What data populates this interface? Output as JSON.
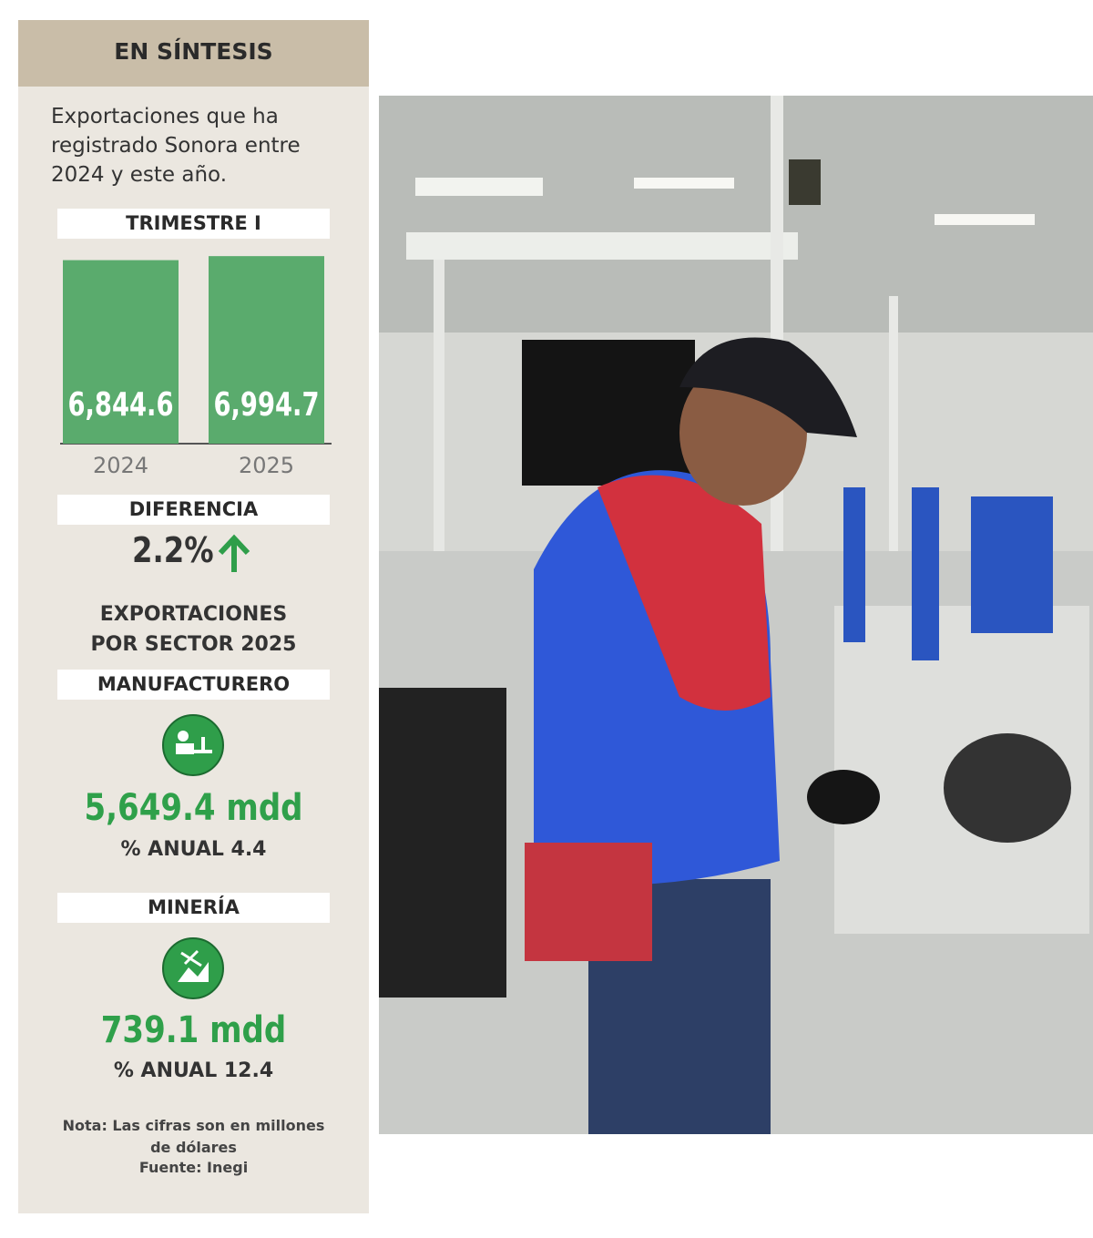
{
  "header": {
    "title": "EN SÍNTESIS"
  },
  "intro": "Exportaciones que ha registrado Sonora entre 2024 y este año.",
  "chart_data": {
    "type": "bar",
    "title": "TRIMESTRE I",
    "categories": [
      "2024",
      "2025"
    ],
    "values": [
      6844.6,
      6994.7
    ],
    "value_labels": [
      "6,844.6",
      "6,994.7"
    ],
    "color": "#5aab6d",
    "ylim": [
      0,
      7000
    ]
  },
  "difference": {
    "label": "DIFERENCIA",
    "value": "2.2%"
  },
  "sectors": {
    "title": "EXPORTACIONES POR SECTOR 2025",
    "items": [
      {
        "name": "MANUFACTURERO",
        "amount": "5,649.4 mdd",
        "annual": "% ANUAL 4.4"
      },
      {
        "name": "MINERÍA",
        "amount": "739.1 mdd",
        "annual": "% ANUAL 12.4"
      }
    ]
  },
  "note": "Nota: Las cifras son en millones de dólares",
  "source": "Fuente: Inegi"
}
